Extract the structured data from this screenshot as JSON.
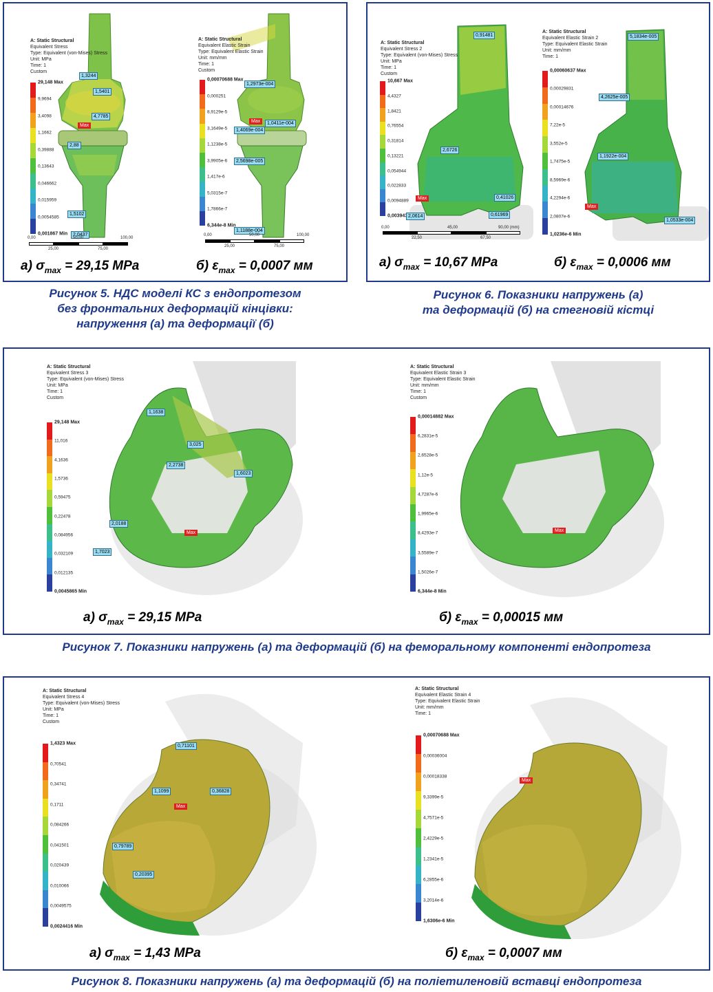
{
  "captions": {
    "fig5": [
      "Рисунок 5. НДС моделі КС з ендопротезом",
      "без фронтальних деформацій кінцівки:",
      "напруження (а) та деформації (б)"
    ],
    "fig6": [
      "Рисунок 6. Показники напружень (а)",
      "та деформацій (б) на стегновій кістці"
    ],
    "fig7": "Рисунок 7. Показники напружень (а) та деформацій (б) на феморальному компоненті ендопротеза",
    "fig8": "Рисунок 8. Показники напружень (а) та деформацій (б) на поліетиленовій вставці ендопротеза"
  },
  "subcaptions": {
    "f5a": {
      "pre": "а) σ",
      "sub": "max",
      "post": " = 29,15 MPa"
    },
    "f5b": {
      "pre": "б) ε",
      "sub": "max",
      "post": " = 0,0007 мм"
    },
    "f6a": {
      "pre": "а) σ",
      "sub": "max",
      "post": " = 10,67 MPa"
    },
    "f6b": {
      "pre": "б) ε",
      "sub": "max",
      "post": " = 0,0006 мм"
    },
    "f7a": {
      "pre": "а) σ",
      "sub": "max",
      "post": " = 29,15 MPa"
    },
    "f7b": {
      "pre": "б) ε",
      "sub": "max",
      "post": " = 0,00015 мм"
    },
    "f8a": {
      "pre": "а) σ",
      "sub": "max",
      "post": " = 1,43 MPa"
    },
    "f8b": {
      "pre": "б) ε",
      "sub": "max",
      "post": " = 0,0007 мм"
    }
  },
  "panels": {
    "f5a": {
      "info": [
        "A: Static Structural",
        "Equivalent Stress",
        "Type: Equivalent (von-Mises) Stress",
        "Unit: MPa",
        "Time: 1",
        "Custom"
      ],
      "legend": [
        "29,148 Max",
        "9,9694",
        "3,4098",
        "1,1662",
        "0,39888",
        "0,13643",
        "0,046662",
        "0,015959",
        "0,0054585",
        "0,001867 Min"
      ],
      "probes": [
        "1,3244",
        "1,5401",
        "4,7785",
        "2,88",
        "1,5102",
        "2,0437"
      ],
      "max": "Max",
      "scale": [
        "0,00",
        "50,00",
        "100,00",
        "25,00",
        "75,00"
      ]
    },
    "f5b": {
      "info": [
        "A: Static Structural",
        "Equivalent Elastic Strain",
        "Type: Equivalent Elastic Strain",
        "Unit: mm/mm",
        "Time: 1",
        "Custom"
      ],
      "legend": [
        "0,00070688 Max",
        "0,000251",
        "8,9129e-5",
        "3,1649e-5",
        "1,1238e-5",
        "3,9905e-6",
        "1,417e-6",
        "5,0315e-7",
        "1,7866e-7",
        "6,344e-8 Min"
      ],
      "probes": [
        "1,2973e-004",
        "1,0411e-004",
        "1,4069e-004",
        "2,5698e-005",
        "1,1188e-004"
      ],
      "max": "Max",
      "scale": [
        "0,00",
        "50,00",
        "100,00",
        "25,00",
        "75,00"
      ]
    },
    "f6a": {
      "info": [
        "A: Static Structural",
        "Equivalent Stress 2",
        "Type: Equivalent (von-Mises) Stress",
        "Unit: MPa",
        "Time: 1",
        "Custom"
      ],
      "legend": [
        "10,667 Max",
        "4,4327",
        "1,8421",
        "0,76554",
        "0,31814",
        "0,13221",
        "0,054944",
        "0,022833",
        "0,0094889",
        "0,0039433 Min"
      ],
      "probes": [
        "0,91481",
        "2,6726",
        "0,41026",
        "0,61969",
        "2,0614"
      ],
      "max": "Max",
      "scale": [
        "0,00",
        "45,00",
        "90,00 (mm)",
        "22,50",
        "67,50"
      ]
    },
    "f6b": {
      "info": [
        "A: Static Structural",
        "Equivalent Elastic Strain 2",
        "Type: Equivalent Elastic Strain",
        "Unit: mm/mm",
        "Time: 1"
      ],
      "legend": [
        "0,00060637 Max",
        "0,00029831",
        "0,00014676",
        "7,22e-5",
        "3,552e-5",
        "1,7475e-5",
        "8,5969e-6",
        "4,2294e-6",
        "2,0807e-6",
        "1,0236e-6 Min"
      ],
      "probes": [
        "5,1834e-005",
        "4,2625e-005",
        "1,1922e-004",
        "1,0533e-004"
      ],
      "max": "Max"
    },
    "f7a": {
      "info": [
        "A: Static Structural",
        "Equivalent Stress 3",
        "Type: Equivalent (von-Mises) Stress",
        "Unit: MPa",
        "Time: 1",
        "Custom"
      ],
      "legend": [
        "29,148 Max",
        "11,016",
        "4,1636",
        "1,5736",
        "0,59475",
        "0,22478",
        "0,084956",
        "0,032109",
        "0,012135",
        "0,0045865 Min"
      ],
      "probes": [
        "1,1638",
        "3,025",
        "2,2738",
        "1,6023",
        "2,0188",
        "1,7023"
      ],
      "max": "Max"
    },
    "f7b": {
      "info": [
        "A: Static Structural",
        "Equivalent Elastic Strain 3",
        "Type: Equivalent Elastic Strain",
        "Unit: mm/mm",
        "Time: 1",
        "Custom"
      ],
      "legend": [
        "0,00014882 Max",
        "6,2831e-5",
        "2,6528e-5",
        "1,12e-5",
        "4,7287e-6",
        "1,9965e-6",
        "8,4293e-7",
        "3,5589e-7",
        "1,5026e-7",
        "6,344e-8 Min"
      ],
      "probes": [],
      "max": "Max"
    },
    "f8a": {
      "info": [
        "A: Static Structural",
        "Equivalent Stress 4",
        "Type: Equivalent (von-Mises) Stress",
        "Unit: MPa",
        "Time: 1",
        "Custom"
      ],
      "legend": [
        "1,4323 Max",
        "0,70541",
        "0,34741",
        "0,1711",
        "0,084266",
        "0,041501",
        "0,020439",
        "0,010066",
        "0,0049575",
        "0,0024416 Min"
      ],
      "probes": [
        "0,71101",
        "1,1099",
        "0,36828",
        "0,79789",
        "0,20395"
      ],
      "max": "Max"
    },
    "f8b": {
      "info": [
        "A: Static Structural",
        "Equivalent Elastic Strain 4",
        "Type: Equivalent Elastic Strain",
        "Unit: mm/mm",
        "Time: 1"
      ],
      "legend": [
        "0,00070688 Max",
        "0,00036004",
        "0,00018338",
        "9,3399e-5",
        "4,7571e-5",
        "2,4229e-5",
        "1,2341e-5",
        "6,2855e-6",
        "3,2014e-6",
        "1,6306e-6 Min"
      ],
      "probes": [],
      "max": "Max"
    }
  },
  "colors": {
    "frame": "#1f3a8a",
    "caption": "#1f3a8a",
    "legend_scale": [
      "#e31a1c",
      "#f26a1b",
      "#f0a21e",
      "#e8e020",
      "#a6d83a",
      "#4fbf3c",
      "#3cbf8a",
      "#35b4c8",
      "#3a86d0",
      "#2a3f9e"
    ]
  }
}
